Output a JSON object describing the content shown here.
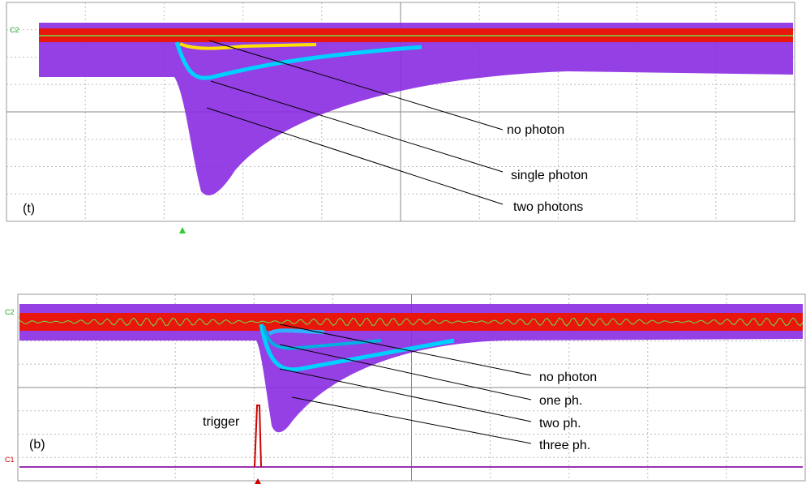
{
  "top": {
    "panel_label": "(t)",
    "channel": "C2",
    "annotations": [
      "no photon",
      "single photon",
      "two photons"
    ]
  },
  "bottom": {
    "panel_label": "(b)",
    "channels": [
      "C2",
      "C1"
    ],
    "trigger": "trigger",
    "annotations": [
      "no photon",
      "one ph.",
      "two ph.",
      "three ph."
    ]
  }
}
